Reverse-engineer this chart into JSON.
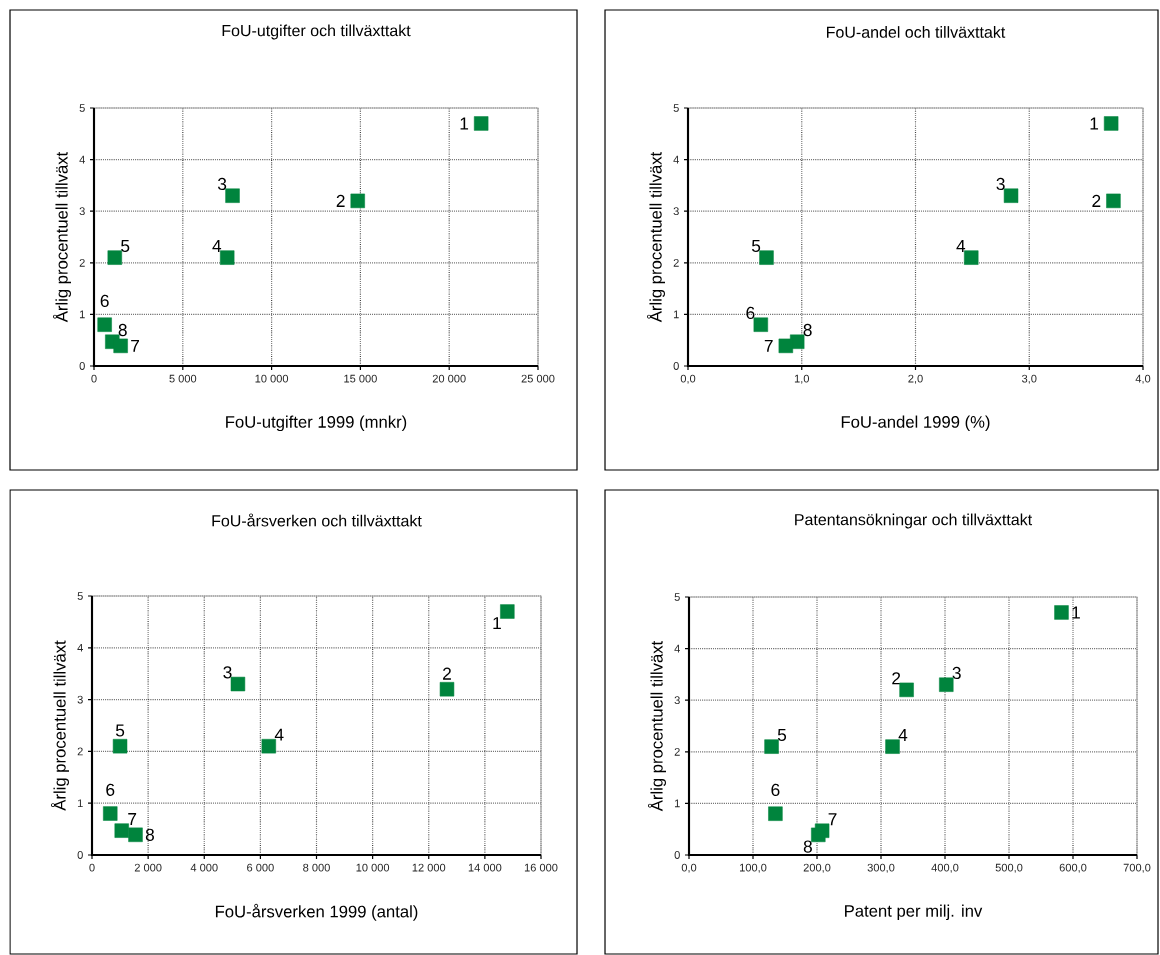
{
  "chart_data": [
    {
      "type": "scatter",
      "title": "FoU-utgifter och tillväxttakt",
      "xlabel": "FoU-utgifter 1999 (mnkr)",
      "ylabel": "Årlig procentuell tillväxt",
      "color": "#00843d",
      "marker": "square",
      "grid": true,
      "x": [
        21800,
        14850,
        7800,
        7500,
        1170,
        600,
        1500,
        1030
      ],
      "values": [
        4.7,
        3.2,
        3.3,
        2.1,
        2.1,
        0.8,
        0.39,
        0.47
      ],
      "xlim": [
        0,
        25000
      ],
      "ylim": [
        0,
        5
      ],
      "xticks": [
        0,
        {
          "value": 5000,
          "label": "5 000"
        },
        {
          "value": 10000,
          "label": "10 000"
        },
        {
          "value": 15000,
          "label": "15 000"
        },
        {
          "value": 20000,
          "label": "20 000"
        },
        {
          "value": 25000,
          "label": "25 000"
        }
      ],
      "yticks": [
        0,
        1,
        2,
        3,
        4,
        5
      ],
      "annotations": [
        {
          "text": "1",
          "x": 21800,
          "y": 4.7
        },
        {
          "text": "2",
          "x": 14850,
          "y": 3.2
        },
        {
          "text": "3",
          "x": 7800,
          "y": 3.3
        },
        {
          "text": "4",
          "x": 7500,
          "y": 2.1
        },
        {
          "text": "5",
          "x": 1170,
          "y": 2.1
        },
        {
          "text": "6",
          "x": 600,
          "y": 0.8
        },
        {
          "text": "7",
          "x": 1500,
          "y": 0.39
        },
        {
          "text": "8",
          "x": 1030,
          "y": 0.47
        }
      ]
    },
    {
      "type": "scatter",
      "title": "FoU-andel och tillväxttakt",
      "xlabel": "FoU-andel 1999 (%)",
      "ylabel": "Årlig procentuell tillväxt",
      "color": "#00843d",
      "marker": "square",
      "grid": true,
      "x": [
        3.72,
        3.74,
        2.84,
        2.49,
        0.69,
        0.64,
        0.86,
        0.96
      ],
      "values": [
        4.7,
        3.2,
        3.3,
        2.1,
        2.1,
        0.8,
        0.39,
        0.47
      ],
      "xlim": [
        0,
        4
      ],
      "ylim": [
        0,
        5
      ],
      "xticks": [
        {
          "value": 0,
          "label": "0,0"
        },
        {
          "value": 1,
          "label": "1,0"
        },
        {
          "value": 2,
          "label": "2,0"
        },
        {
          "value": 3,
          "label": "3,0"
        },
        {
          "value": 4,
          "label": "4,0"
        }
      ],
      "yticks": [
        0,
        1,
        2,
        3,
        4,
        5
      ],
      "annotations": [
        {
          "text": "1",
          "x": 3.72,
          "y": 4.7
        },
        {
          "text": "2",
          "x": 3.74,
          "y": 3.2
        },
        {
          "text": "3",
          "x": 2.84,
          "y": 3.3
        },
        {
          "text": "4",
          "x": 2.49,
          "y": 2.1
        },
        {
          "text": "5",
          "x": 0.69,
          "y": 2.1
        },
        {
          "text": "6",
          "x": 0.64,
          "y": 0.8
        },
        {
          "text": "7",
          "x": 0.86,
          "y": 0.39
        },
        {
          "text": "8",
          "x": 0.96,
          "y": 0.47
        }
      ]
    },
    {
      "type": "scatter",
      "title": "FoU-årsverken och tillväxttakt",
      "xlabel": "FoU-årsverken 1999 (antal)",
      "ylabel": "Årlig procentuell tillväxt",
      "color": "#00843d",
      "marker": "square",
      "grid": true,
      "x": [
        14800,
        12650,
        5200,
        6300,
        1000,
        650,
        1060,
        1550
      ],
      "values": [
        4.7,
        3.2,
        3.3,
        2.1,
        2.1,
        0.8,
        0.47,
        0.39
      ],
      "xlim": [
        0,
        16000
      ],
      "ylim": [
        0,
        5
      ],
      "xticks": [
        0,
        {
          "value": 2000,
          "label": "2 000"
        },
        {
          "value": 4000,
          "label": "4 000"
        },
        {
          "value": 6000,
          "label": "6 000"
        },
        {
          "value": 8000,
          "label": "8 000"
        },
        {
          "value": 10000,
          "label": "10 000"
        },
        {
          "value": 12000,
          "label": "12 000"
        },
        {
          "value": 14000,
          "label": "14 000"
        },
        {
          "value": 16000,
          "label": "16 000"
        }
      ],
      "yticks": [
        0,
        1,
        2,
        3,
        4,
        5
      ],
      "annotations": [
        {
          "text": "1",
          "x": 14800,
          "y": 4.7
        },
        {
          "text": "2",
          "x": 12650,
          "y": 3.2
        },
        {
          "text": "3",
          "x": 5200,
          "y": 3.3
        },
        {
          "text": "4",
          "x": 6300,
          "y": 2.1
        },
        {
          "text": "5",
          "x": 1000,
          "y": 2.1
        },
        {
          "text": "6",
          "x": 650,
          "y": 0.8
        },
        {
          "text": "7",
          "x": 1060,
          "y": 0.47
        },
        {
          "text": "8",
          "x": 1550,
          "y": 0.39
        }
      ]
    },
    {
      "type": "scatter",
      "title": "Patentansökningar och tillväxttakt",
      "xlabel": "Patent per milj. inv",
      "ylabel": "Årlig procentuell tillväxt",
      "color": "#00843d",
      "marker": "square",
      "grid": true,
      "x": [
        582,
        340,
        402,
        318,
        129,
        135,
        208,
        202
      ],
      "values": [
        4.7,
        3.2,
        3.3,
        2.1,
        2.1,
        0.8,
        0.47,
        0.39
      ],
      "xlim": [
        0,
        700
      ],
      "ylim": [
        0,
        5
      ],
      "xticks": [
        {
          "value": 0,
          "label": "0,0"
        },
        {
          "value": 100,
          "label": "100,0"
        },
        {
          "value": 200,
          "label": "200,0"
        },
        {
          "value": 300,
          "label": "300,0"
        },
        {
          "value": 400,
          "label": "400,0"
        },
        {
          "value": 500,
          "label": "500,0"
        },
        {
          "value": 600,
          "label": "600,0"
        },
        {
          "value": 700,
          "label": "700,0"
        }
      ],
      "yticks": [
        0,
        1,
        2,
        3,
        4,
        5
      ],
      "annotations": [
        {
          "text": "1",
          "x": 582,
          "y": 4.7
        },
        {
          "text": "2",
          "x": 340,
          "y": 3.2
        },
        {
          "text": "3",
          "x": 402,
          "y": 3.3
        },
        {
          "text": "4",
          "x": 318,
          "y": 2.1
        },
        {
          "text": "5",
          "x": 129,
          "y": 2.1
        },
        {
          "text": "6",
          "x": 135,
          "y": 0.8
        },
        {
          "text": "7",
          "x": 208,
          "y": 0.47
        },
        {
          "text": "8",
          "x": 202,
          "y": 0.39
        }
      ]
    }
  ]
}
